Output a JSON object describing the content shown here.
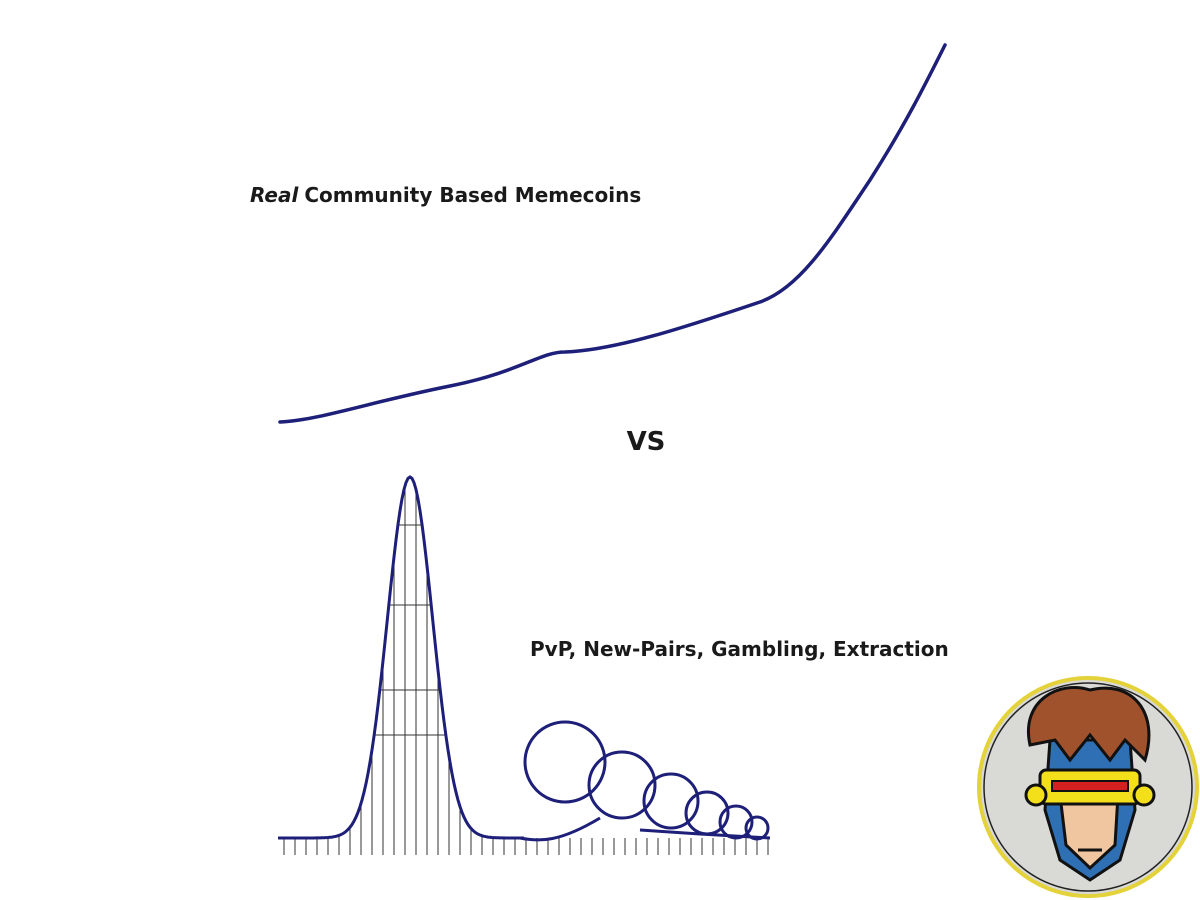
{
  "top_label": {
    "emphasis": "Real",
    "text": "Community Based Memecoins"
  },
  "separator": "VS",
  "bottom_label": "PvP, New-Pairs, Gambling, Extraction"
}
